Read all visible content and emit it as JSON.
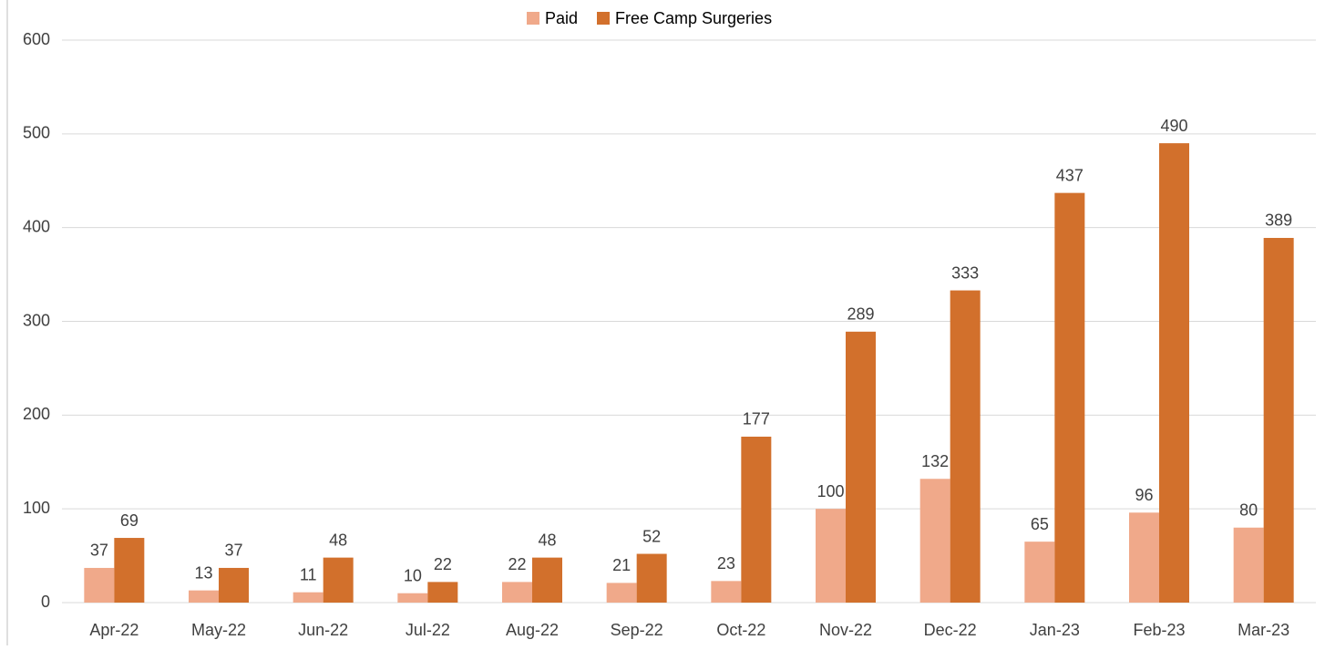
{
  "chart_data": {
    "type": "bar",
    "categories": [
      "Apr-22",
      "May-22",
      "Jun-22",
      "Jul-22",
      "Aug-22",
      "Sep-22",
      "Oct-22",
      "Nov-22",
      "Dec-22",
      "Jan-23",
      "Feb-23",
      "Mar-23"
    ],
    "series": [
      {
        "name": "Paid",
        "color": "#f0a98a",
        "values": [
          37,
          13,
          11,
          10,
          22,
          21,
          23,
          100,
          132,
          65,
          96,
          80
        ]
      },
      {
        "name": "Free Camp Surgeries",
        "color": "#d2702c",
        "values": [
          69,
          37,
          48,
          22,
          48,
          52,
          177,
          289,
          333,
          437,
          490,
          389
        ]
      }
    ],
    "ylim": [
      0,
      600
    ],
    "yticks": [
      0,
      100,
      200,
      300,
      400,
      500,
      600
    ],
    "grid": true,
    "legend": "top"
  }
}
